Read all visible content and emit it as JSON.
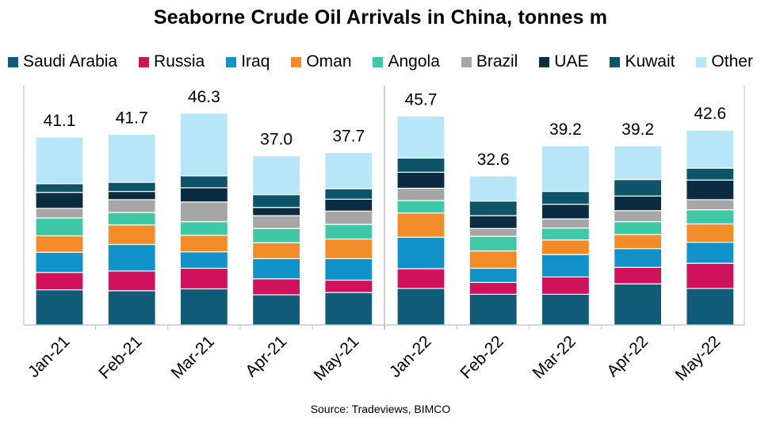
{
  "chart_data": {
    "type": "bar",
    "stacked": true,
    "title": "Seaborne Crude Oil Arrivals in China, tonnes m",
    "source": "Source: Tradeviews, BIMCO",
    "categories": [
      "Jan-21",
      "Feb-21",
      "Mar-21",
      "Apr-21",
      "May-21",
      "Jan-22",
      "Feb-22",
      "Mar-22",
      "Apr-22",
      "May-22"
    ],
    "totals": [
      "41.1",
      "41.7",
      "46.3",
      "37.0",
      "37.7",
      "45.7",
      "32.6",
      "39.2",
      "39.2",
      "42.6"
    ],
    "ylim": [
      0,
      52
    ],
    "legend_position": "top",
    "series": [
      {
        "name": "Saudi Arabia",
        "color": "#0f5b78",
        "values": [
          7.7,
          7.5,
          7.9,
          6.6,
          7.1,
          8.0,
          6.7,
          6.7,
          9.0,
          8.0
        ]
      },
      {
        "name": "Russia",
        "color": "#d0115c",
        "values": [
          3.8,
          4.3,
          4.5,
          3.5,
          2.7,
          4.3,
          2.6,
          3.8,
          3.6,
          5.5
        ]
      },
      {
        "name": "Iraq",
        "color": "#1192c9",
        "values": [
          4.4,
          5.8,
          3.6,
          4.4,
          4.7,
          6.9,
          3.1,
          4.9,
          4.1,
          4.6
        ]
      },
      {
        "name": "Oman",
        "color": "#f28c28",
        "values": [
          3.6,
          4.3,
          3.6,
          3.5,
          4.3,
          5.3,
          3.8,
          3.2,
          3.1,
          4.0
        ]
      },
      {
        "name": "Angola",
        "color": "#3ec8a6",
        "values": [
          3.9,
          2.7,
          3.0,
          3.1,
          3.2,
          2.7,
          3.2,
          2.6,
          2.8,
          3.1
        ]
      },
      {
        "name": "Brazil",
        "color": "#a6a6a6",
        "values": [
          2.1,
          2.8,
          4.3,
          2.8,
          2.9,
          2.7,
          1.7,
          2.0,
          2.4,
          2.2
        ]
      },
      {
        "name": "UAE",
        "color": "#0b2b40",
        "values": [
          3.5,
          1.8,
          3.1,
          1.8,
          2.6,
          3.5,
          2.8,
          3.2,
          3.2,
          4.3
        ]
      },
      {
        "name": "Kuwait",
        "color": "#0e5468",
        "values": [
          1.9,
          2.0,
          2.6,
          2.8,
          2.3,
          3.1,
          3.2,
          2.8,
          3.6,
          2.6
        ]
      },
      {
        "name": "Other",
        "color": "#b7e6f9",
        "values": [
          10.2,
          10.5,
          13.7,
          8.5,
          7.9,
          9.2,
          5.5,
          10.0,
          7.4,
          8.3
        ]
      }
    ]
  }
}
